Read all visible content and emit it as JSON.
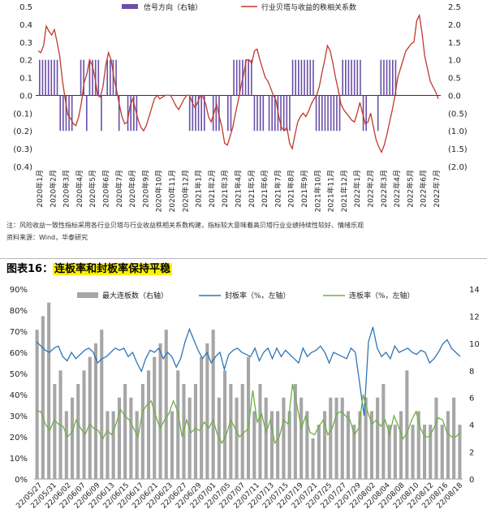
{
  "chart_data": [
    {
      "type": "bar+line",
      "legend": [
        "信号方向（右轴）",
        "行业贝塔与收益的秩相关系数"
      ],
      "colors": {
        "bar": "#6b4fa8",
        "line": "#c0392b"
      },
      "left_axis": {
        "ticks": [
          "0.5",
          "0.4",
          "0.3",
          "0.2",
          "0.1",
          "0.0",
          "(0.1)",
          "(0.2)",
          "(0.3)",
          "(0.4)"
        ],
        "range": [
          -0.4,
          0.5
        ]
      },
      "right_axis": {
        "ticks": [
          "2.5",
          "2.0",
          "1.5",
          "1.0",
          "0.5",
          "0.0",
          "(0.5)",
          "(1.0)",
          "(1.5)",
          "(2.0)"
        ],
        "range": [
          -2.0,
          2.5
        ]
      },
      "x_labels": [
        "2020年1月",
        "2020年2月",
        "2020年3月",
        "2020年4月",
        "2020年5月",
        "2020年6月",
        "2020年7月",
        "2020年8月",
        "2020年9月",
        "2020年10月",
        "2020年11月",
        "2020年12月",
        "2021年1月",
        "2021年2月",
        "2021年3月",
        "2021年4月",
        "2021年5月",
        "2021年6月",
        "2021年7月",
        "2021年8月",
        "2021年9月",
        "2021年10月",
        "2021年11月",
        "2021年12月",
        "2022年1月",
        "2022年2月",
        "2022年3月",
        "2022年4月",
        "2022年5月",
        "2022年6月",
        "2022年7月"
      ],
      "line_values": [
        0.25,
        0.24,
        0.28,
        0.39,
        0.36,
        0.34,
        0.37,
        0.3,
        0.22,
        0.08,
        -0.02,
        -0.11,
        -0.13,
        -0.16,
        -0.17,
        -0.12,
        -0.04,
        0.07,
        0.12,
        0.2,
        0.17,
        0.1,
        0.0,
        -0.01,
        0.05,
        0.17,
        0.24,
        0.2,
        0.1,
        0.03,
        -0.05,
        -0.12,
        -0.16,
        -0.15,
        -0.06,
        -0.02,
        -0.08,
        -0.14,
        -0.18,
        -0.2,
        -0.17,
        -0.12,
        -0.07,
        -0.02,
        0.0,
        -0.02,
        -0.01,
        0.0,
        0.0,
        0.0,
        -0.03,
        -0.06,
        -0.08,
        -0.05,
        -0.02,
        0.0,
        0.0,
        -0.04,
        -0.07,
        -0.04,
        0.0,
        -0.01,
        -0.05,
        -0.12,
        -0.15,
        -0.1,
        -0.05,
        -0.12,
        -0.18,
        -0.27,
        -0.28,
        -0.23,
        -0.18,
        -0.1,
        -0.03,
        0.05,
        0.12,
        0.2,
        0.2,
        0.18,
        0.25,
        0.26,
        0.2,
        0.15,
        0.1,
        0.08,
        0.04,
        0.0,
        -0.03,
        -0.12,
        -0.18,
        -0.2,
        -0.18,
        -0.27,
        -0.3,
        -0.22,
        -0.15,
        -0.12,
        -0.1,
        -0.12,
        -0.09,
        -0.05,
        -0.02,
        0.0,
        0.05,
        0.13,
        0.2,
        0.28,
        0.25,
        0.18,
        0.1,
        0.03,
        -0.05,
        -0.08,
        -0.1,
        -0.12,
        -0.14,
        -0.15,
        -0.1,
        -0.04,
        -0.1,
        -0.16,
        -0.15,
        -0.1,
        -0.18,
        -0.25,
        -0.29,
        -0.32,
        -0.28,
        -0.22,
        -0.15,
        -0.08,
        0.0,
        0.1,
        0.15,
        0.2,
        0.25,
        0.27,
        0.29,
        0.3,
        0.42,
        0.45,
        0.35,
        0.22,
        0.15,
        0.08,
        0.05,
        0.02,
        -0.02
      ],
      "bar_values": [
        1,
        1,
        1,
        1,
        1,
        1,
        1,
        -1,
        -1,
        -1,
        -1,
        -1,
        0,
        0,
        1,
        1,
        -1,
        1,
        1,
        1,
        1,
        -1,
        0,
        1,
        1,
        1,
        1,
        -1,
        0,
        0,
        -1,
        -1,
        -1,
        -1,
        0,
        0,
        0,
        0,
        0,
        0,
        0,
        0,
        0,
        0,
        0,
        0,
        0,
        0,
        0,
        0,
        0,
        -1,
        -1,
        -1,
        -1,
        -1,
        -1,
        0,
        0,
        -1,
        -1,
        -1,
        0,
        0,
        -1,
        -1,
        1,
        1,
        1,
        1,
        1,
        1,
        1,
        -1,
        -1,
        -1,
        -1,
        0,
        -1,
        -1,
        -1,
        -1,
        -1,
        -1,
        -1,
        -1,
        1,
        1,
        1,
        1,
        1,
        1,
        1,
        1,
        -1,
        -1,
        -1,
        -1,
        -1,
        -1,
        -1,
        -1,
        -1,
        1,
        1,
        1,
        1,
        1,
        1,
        1,
        -1,
        -1,
        0,
        0,
        0,
        -1,
        1,
        1,
        1,
        1,
        1,
        1,
        0,
        0,
        0,
        0,
        0,
        0,
        0,
        0,
        0,
        0,
        0,
        0,
        0,
        0
      ]
    },
    {
      "type": "bar+line",
      "legend": [
        "最大连板数（右轴）",
        "封板率（%，左轴）",
        "连板率（%，左轴）"
      ],
      "colors": {
        "bar": "#a6a6a6",
        "line_seal": "#2e75b6",
        "line_cont": "#70ad47"
      },
      "left_axis": {
        "ticks": [
          "90%",
          "80%",
          "70%",
          "60%",
          "50%",
          "40%",
          "30%",
          "20%",
          "10%",
          "0%"
        ],
        "range": [
          0,
          90
        ]
      },
      "right_axis": {
        "ticks": [
          "14",
          "12",
          "10",
          "8",
          "6",
          "4",
          "2",
          "0"
        ],
        "range": [
          0,
          14
        ]
      },
      "x_labels": [
        "22/05/27",
        "22/05/31",
        "22/06/02",
        "22/06/07",
        "22/06/09",
        "22/06/13",
        "22/06/15",
        "22/06/17",
        "22/06/21",
        "22/06/23",
        "22/06/27",
        "22/06/29",
        "22/07/01",
        "22/07/05",
        "22/07/07",
        "22/07/11",
        "22/07/13",
        "22/07/15",
        "22/07/19",
        "22/07/21",
        "22/07/25",
        "22/07/27",
        "22/07/29",
        "22/08/02",
        "22/08/04",
        "22/08/08",
        "22/08/10",
        "22/08/12",
        "22/08/16",
        "22/08/18"
      ],
      "bar_values": [
        11,
        12,
        13,
        7,
        8,
        5,
        6,
        7,
        8,
        9,
        10,
        11,
        5,
        5,
        6,
        7,
        6,
        5,
        7,
        8,
        9,
        10,
        11,
        5,
        8,
        7,
        6,
        7,
        9,
        10,
        11,
        6,
        8,
        7,
        6,
        7,
        9,
        5,
        7,
        6,
        5,
        5,
        6,
        5,
        7,
        6,
        5,
        3,
        4,
        5,
        6,
        6,
        6,
        5,
        4,
        5,
        6,
        5,
        6,
        7,
        4,
        4,
        5,
        8,
        4,
        5,
        4,
        4,
        6,
        4,
        5,
        6,
        4
      ],
      "seal_values": [
        65,
        63,
        61,
        60,
        62,
        63,
        58,
        56,
        60,
        57,
        59,
        61,
        62,
        60,
        55,
        57,
        58,
        60,
        62,
        61,
        62,
        58,
        60,
        55,
        51,
        57,
        61,
        60,
        62,
        57,
        60,
        58,
        53,
        57,
        65,
        71,
        66,
        61,
        57,
        60,
        55,
        58,
        60,
        52,
        59,
        61,
        62,
        60,
        59,
        58,
        62,
        56,
        60,
        62,
        57,
        62,
        58,
        61,
        59,
        57,
        55,
        62,
        58,
        60,
        61,
        63,
        60,
        55,
        60,
        59,
        58,
        57,
        62,
        60,
        45,
        30,
        65,
        72,
        62,
        58,
        60,
        57,
        63,
        60,
        61,
        62,
        60,
        59,
        61,
        60,
        55,
        57,
        60,
        64,
        66,
        62,
        60,
        58
      ],
      "cont_values": [
        32,
        32,
        26,
        23,
        28,
        26,
        25,
        20,
        22,
        28,
        24,
        21,
        26,
        24,
        23,
        19,
        23,
        21,
        26,
        33,
        30,
        28,
        24,
        20,
        32,
        35,
        37,
        30,
        24,
        28,
        31,
        37,
        32,
        20,
        28,
        22,
        24,
        23,
        27,
        24,
        28,
        21,
        17,
        21,
        28,
        24,
        20,
        22,
        24,
        42,
        27,
        31,
        22,
        28,
        17,
        20,
        28,
        26,
        45,
        35,
        24,
        30,
        22,
        21,
        25,
        28,
        21,
        24,
        31,
        32,
        30,
        28,
        21,
        24,
        40,
        32,
        26,
        28,
        25,
        28,
        21,
        30,
        25,
        19,
        22,
        28,
        32,
        24,
        20,
        20,
        24,
        29,
        28,
        22,
        20,
        20,
        22
      ]
    }
  ],
  "note_line1": "注：风险收益一致性指标采用各行业贝塔与行业收益秩相关系数构建，指标较大意味着高贝塔行业业绩持续性较好、情绪乐观",
  "note_line2": "资料来源：Wind，华泰研究",
  "fig_title_prefix": "图表16：",
  "fig_title_text": "连板率和封板率保持平稳"
}
